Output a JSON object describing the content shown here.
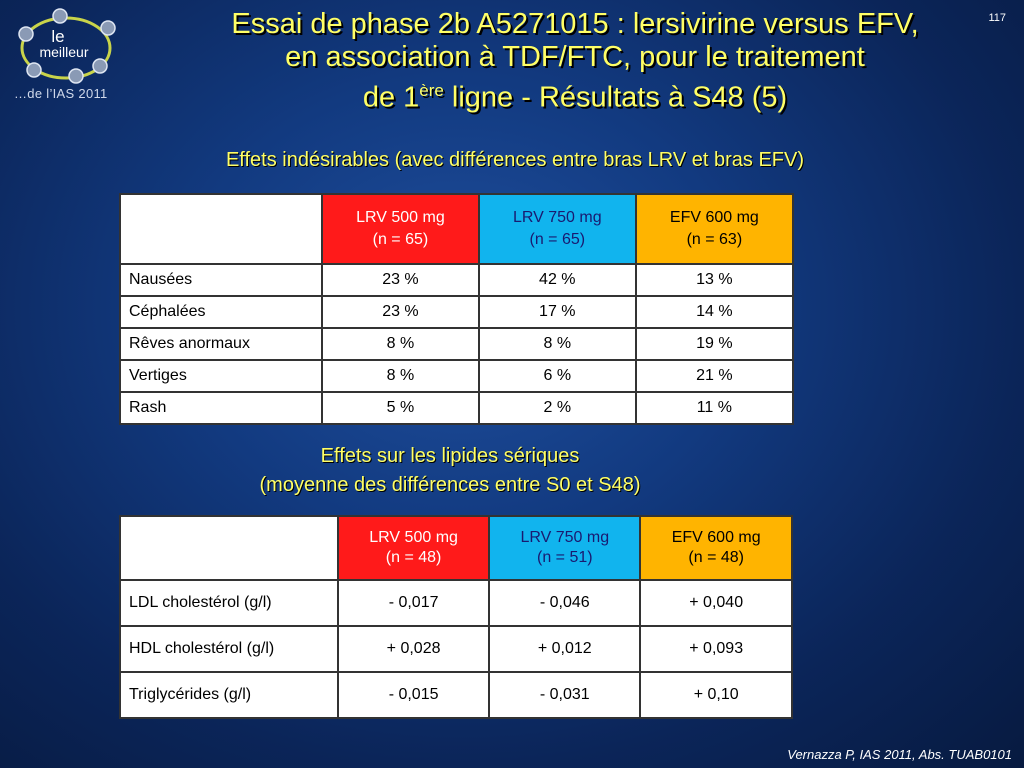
{
  "logo": {
    "line1": "le",
    "line2": "meilleur",
    "tagline": "…de l’IAS 2011"
  },
  "slide_number": "117",
  "title": {
    "line1": "Essai de phase 2b A5271015 : lersivirine versus EFV,",
    "line2": "en association à TDF/FTC, pour le traitement",
    "line3_pre": "de 1",
    "line3_sup": "ère",
    "line3_post": " ligne - Résultats à S48 (5)"
  },
  "section1_title": "Effets indésirables (avec différences entre bras LRV et bras EFV)",
  "table1": {
    "headers": [
      {
        "dose": "LRV 500 mg",
        "n": "(n = 65)"
      },
      {
        "dose": "LRV 750 mg",
        "n": "(n = 65)"
      },
      {
        "dose": "EFV 600 mg",
        "n": "(n = 63)"
      }
    ],
    "rows": [
      {
        "label": "Nausées",
        "values": [
          "23 %",
          "42 %",
          "13 %"
        ]
      },
      {
        "label": "Céphalées",
        "values": [
          "23 %",
          "17 %",
          "14 %"
        ]
      },
      {
        "label": "Rêves anormaux",
        "values": [
          "8 %",
          "8 %",
          "19 %"
        ]
      },
      {
        "label": "Vertiges",
        "values": [
          "8 %",
          "6 %",
          "21 %"
        ]
      },
      {
        "label": "Rash",
        "values": [
          "5 %",
          "2 %",
          "11 %"
        ]
      }
    ]
  },
  "section2_title_line1": "Effets sur les lipides sériques",
  "section2_title_line2": "(moyenne des différences entre S0 et S48)",
  "table2": {
    "headers": [
      {
        "dose": "LRV 500 mg",
        "n": "(n = 48)"
      },
      {
        "dose": "LRV 750 mg",
        "n": "(n = 51)"
      },
      {
        "dose": "EFV 600 mg",
        "n": "(n = 48)"
      }
    ],
    "rows": [
      {
        "label": "LDL cholestérol (g/l)",
        "values": [
          "- 0,017",
          "- 0,046",
          "+ 0,040"
        ]
      },
      {
        "label": "HDL cholestérol (g/l)",
        "values": [
          "+ 0,028",
          "+ 0,012",
          "+ 0,093"
        ]
      },
      {
        "label": "Triglycérides (g/l)",
        "values": [
          "- 0,015",
          "- 0,031",
          "+ 0,10"
        ]
      }
    ]
  },
  "footer": "Vernazza P, IAS 2011, Abs. TUAB0101",
  "colors": {
    "lrv500": "#ff1a1a",
    "lrv750": "#11b4ee",
    "efv600": "#ffb400",
    "title": "#ffff66"
  }
}
